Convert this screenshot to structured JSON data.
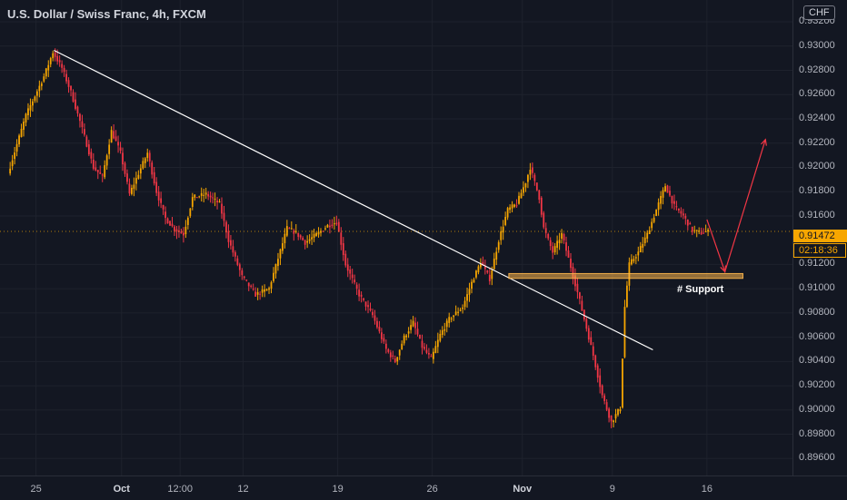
{
  "title": "U.S. Dollar / Swiss Franc, 4h, FXCM",
  "currency_badge": "CHF",
  "last_price": "0.91472",
  "countdown": "02:18:36",
  "support_label": "# Support",
  "colors": {
    "background": "#131722",
    "up": "#f7a600",
    "down": "#f23645",
    "trendline": "#ffffff",
    "support_zone": "#ffb74d",
    "arrow": "#f23645"
  },
  "chart_data": {
    "type": "candlestick",
    "symbol": "U.S. Dollar / Swiss Franc",
    "timeframe": "4h",
    "source": "FXCM",
    "ylim": [
      0.8946,
      0.9338
    ],
    "y_ticks": [
      "0.93200",
      "0.93000",
      "0.92800",
      "0.92600",
      "0.92400",
      "0.92200",
      "0.92000",
      "0.91800",
      "0.91600",
      "0.91200",
      "0.91000",
      "0.90800",
      "0.90600",
      "0.90400",
      "0.90200",
      "0.90000",
      "0.89800",
      "0.89600"
    ],
    "x_ticks": [
      {
        "label": "25",
        "bar": 6
      },
      {
        "label": "Oct",
        "bar": 25,
        "bold": true
      },
      {
        "label": "12:00",
        "bar": 38
      },
      {
        "label": "12",
        "bar": 52
      },
      {
        "label": "19",
        "bar": 73
      },
      {
        "label": "26",
        "bar": 94
      },
      {
        "label": "Nov",
        "bar": 114,
        "bold": true
      },
      {
        "label": "9",
        "bar": 134
      },
      {
        "label": "16",
        "bar": 155
      }
    ],
    "bar_range": [
      -2,
      174
    ],
    "path": [
      [
        0,
        0.9195
      ],
      [
        4,
        0.9243
      ],
      [
        8,
        0.9275
      ],
      [
        10,
        0.9295
      ],
      [
        12,
        0.9282
      ],
      [
        14,
        0.9262
      ],
      [
        16,
        0.9238
      ],
      [
        19,
        0.92
      ],
      [
        21,
        0.9192
      ],
      [
        23,
        0.923
      ],
      [
        25,
        0.9212
      ],
      [
        27,
        0.9178
      ],
      [
        29,
        0.9195
      ],
      [
        31,
        0.9212
      ],
      [
        33,
        0.918
      ],
      [
        35,
        0.9158
      ],
      [
        37,
        0.9149
      ],
      [
        39,
        0.9145
      ],
      [
        41,
        0.9175
      ],
      [
        44,
        0.9178
      ],
      [
        47,
        0.917
      ],
      [
        49,
        0.914
      ],
      [
        52,
        0.911
      ],
      [
        55,
        0.9095
      ],
      [
        58,
        0.91
      ],
      [
        60,
        0.9125
      ],
      [
        62,
        0.915
      ],
      [
        64,
        0.9146
      ],
      [
        66,
        0.9138
      ],
      [
        69,
        0.9146
      ],
      [
        71,
        0.9152
      ],
      [
        73,
        0.9155
      ],
      [
        75,
        0.912
      ],
      [
        78,
        0.9095
      ],
      [
        81,
        0.9078
      ],
      [
        84,
        0.905
      ],
      [
        86,
        0.904
      ],
      [
        88,
        0.906
      ],
      [
        90,
        0.9072
      ],
      [
        92,
        0.9052
      ],
      [
        94,
        0.9042
      ],
      [
        96,
        0.9062
      ],
      [
        98,
        0.9075
      ],
      [
        101,
        0.9085
      ],
      [
        103,
        0.9105
      ],
      [
        105,
        0.9122
      ],
      [
        107,
        0.9108
      ],
      [
        109,
        0.914
      ],
      [
        111,
        0.9165
      ],
      [
        113,
        0.917
      ],
      [
        115,
        0.9188
      ],
      [
        116,
        0.92
      ],
      [
        118,
        0.9175
      ],
      [
        119,
        0.915
      ],
      [
        121,
        0.913
      ],
      [
        123,
        0.9145
      ],
      [
        125,
        0.9118
      ],
      [
        127,
        0.909
      ],
      [
        129,
        0.906
      ],
      [
        130,
        0.9045
      ],
      [
        132,
        0.9012
      ],
      [
        134,
        0.899
      ],
      [
        136,
        0.9002
      ],
      [
        137,
        0.9085
      ],
      [
        138,
        0.912
      ],
      [
        140,
        0.913
      ],
      [
        142,
        0.9145
      ],
      [
        144,
        0.9165
      ],
      [
        146,
        0.9185
      ],
      [
        148,
        0.9168
      ],
      [
        150,
        0.916
      ],
      [
        152,
        0.9148
      ],
      [
        154,
        0.9146
      ],
      [
        155,
        0.9147
      ]
    ],
    "trendline": [
      [
        10,
        0.92965
      ],
      [
        143,
        0.90496
      ]
    ],
    "support_zone": {
      "from_bar": 111,
      "to_bar": 163,
      "low": 0.91085,
      "high": 0.91125,
      "label": "# Support"
    },
    "projection": [
      [
        155,
        0.9157
      ],
      [
        159,
        0.9114
      ],
      [
        168,
        0.9223
      ]
    ],
    "last_price": 0.91472
  }
}
